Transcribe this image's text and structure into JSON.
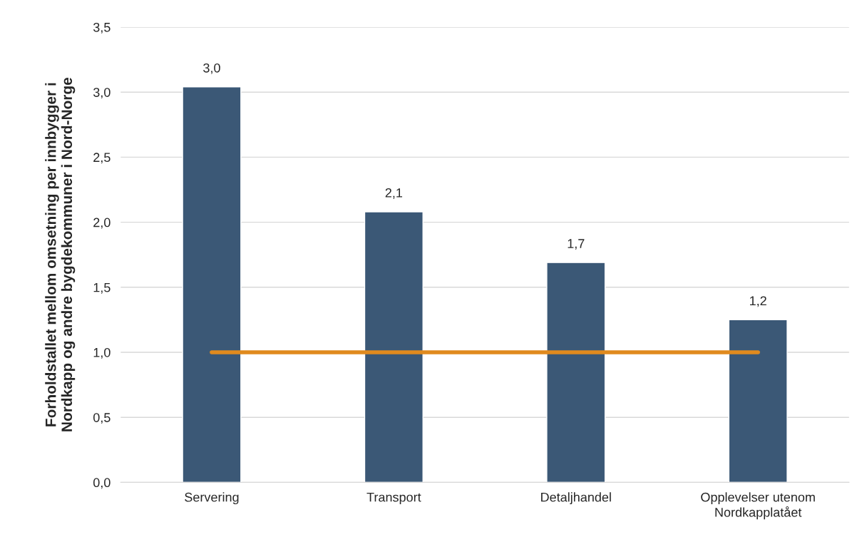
{
  "chart_data": {
    "type": "bar",
    "ylabel": "Forholdstallet mellom omsetning per innbygger i\nNordkapp og andre bygdekommuner i Nord-Norge",
    "categories": [
      "Servering",
      "Transport",
      "Detaljhandel",
      "Opplevelser utenom\nNordkapplatået"
    ],
    "series": [
      {
        "color": "#3b5876",
        "values": [
          3.04,
          2.08,
          1.69,
          1.25
        ],
        "value_labels": [
          "3,0",
          "2,1",
          "1,7",
          "1,2"
        ]
      },
      {
        "type": "line",
        "color": "#e08a1e",
        "values": [
          1.0,
          1.0,
          1.0,
          1.0
        ]
      }
    ],
    "ylim": [
      0,
      3.5
    ],
    "yticks": [
      {
        "value": 0,
        "label": "0,0"
      },
      {
        "value": 0.5,
        "label": "0,5"
      },
      {
        "value": 1,
        "label": "1,0"
      },
      {
        "value": 1.5,
        "label": "1,5"
      },
      {
        "value": 2,
        "label": "2,0"
      },
      {
        "value": 2.5,
        "label": "2,5"
      },
      {
        "value": 3,
        "label": "3,0"
      },
      {
        "value": 3.5,
        "label": "3,5"
      }
    ],
    "grid": "y",
    "legend": false,
    "marker": "none",
    "line_style": "solid"
  }
}
